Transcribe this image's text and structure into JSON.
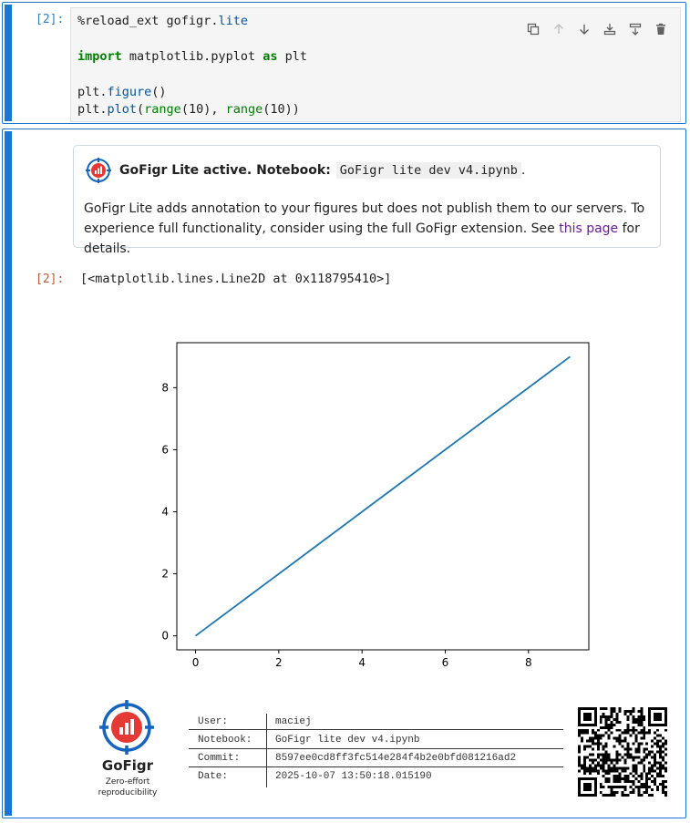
{
  "cell_in": {
    "prompt": "[2]:",
    "code_lines": {
      "l1_a": "%reload_ext gofigr",
      "l1_b": ".",
      "l1_c": "lite",
      "l2_kw1": "import",
      "l2_mid": " matplotlib.pyplot ",
      "l2_kw2": "as",
      "l2_end": " plt",
      "l3_a": "plt.",
      "l3_b": "figure",
      "l3_c": "()",
      "l4_a": "plt.",
      "l4_b": "plot",
      "l4_c": "(",
      "l4_d": "range",
      "l4_e": "(10), ",
      "l4_f": "range",
      "l4_g": "(10))"
    },
    "toolbar": [
      "duplicate-icon",
      "move-up-icon",
      "move-down-icon",
      "insert-above-icon",
      "insert-below-icon",
      "delete-icon"
    ]
  },
  "notice": {
    "title": "GoFigr Lite active. Notebook:",
    "notebook": "GoFigr lite dev v4.ipynb",
    "dot": ".",
    "body_1": "GoFigr Lite adds annotation to your figures but does not publish them to our servers. To experience full functionality, consider using the full GoFigr extension. See ",
    "link": "this page",
    "body_2": " for details."
  },
  "cell_out": {
    "prompt": "[2]:",
    "text": "[<matplotlib.lines.Line2D at 0x118795410>]"
  },
  "chart_data": {
    "type": "line",
    "x": [
      0,
      1,
      2,
      3,
      4,
      5,
      6,
      7,
      8,
      9
    ],
    "series": [
      {
        "values": [
          0,
          1,
          2,
          3,
          4,
          5,
          6,
          7,
          8,
          9
        ],
        "color": "#1f77b4"
      }
    ],
    "xticks": [
      "0",
      "2",
      "4",
      "6",
      "8"
    ],
    "yticks": [
      "0",
      "2",
      "4",
      "6",
      "8"
    ],
    "xlim": [
      -0.45,
      9.45
    ],
    "ylim": [
      -0.45,
      9.45
    ],
    "title": "",
    "xlabel": "",
    "ylabel": ""
  },
  "annotation": {
    "brand": "GoFigr",
    "tagline_1": "Zero-effort",
    "tagline_2": "reproducibility",
    "rows": [
      {
        "key": "User:",
        "value": "maciej"
      },
      {
        "key": "Notebook:",
        "value": "GoFigr lite dev v4.ipynb"
      },
      {
        "key": "Commit:",
        "value": "8597ee0cd8ff3fc514e284f4b2e0bfd081216ad2"
      },
      {
        "key": "Date:",
        "value": "2025-10-07 13:50:18.015190"
      }
    ]
  },
  "colors": {
    "accent": "#1976d2",
    "logo_red": "#e53935",
    "logo_blue": "#1565c0",
    "line": "#1f77b4"
  }
}
